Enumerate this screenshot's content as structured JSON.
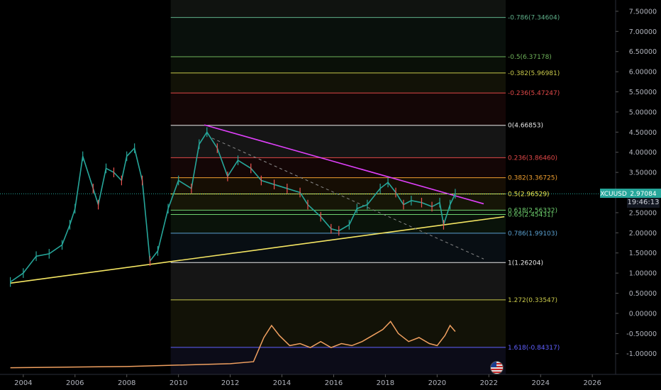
{
  "chart_data": {
    "type": "line",
    "symbol": "XCUUSD",
    "last_price": "2.97084",
    "countdown": "19:46:13",
    "x_range": [
      2003.1,
      2026.9
    ],
    "y_range": [
      -1.515,
      7.78
    ],
    "x_ticks": [
      "2004",
      "2006",
      "2008",
      "2010",
      "2012",
      "2014",
      "2016",
      "2018",
      "2020",
      "2022",
      "2024",
      "2026"
    ],
    "y_ticks": [
      "7.50000",
      "7.00000",
      "6.50000",
      "6.00000",
      "5.50000",
      "5.00000",
      "4.50000",
      "4.00000",
      "3.50000",
      "3.00000",
      "2.50000",
      "2.00000",
      "1.50000",
      "1.00000",
      "0.50000",
      "0.00000",
      "-0.50000",
      "-1.00000"
    ],
    "fib_levels": [
      {
        "ratio": -0.786,
        "price": 7.34604,
        "label": "-0.786(7.34604)",
        "color": "#5fb08a"
      },
      {
        "ratio": -0.5,
        "price": 6.37178,
        "label": "-0.5(6.37178)",
        "color": "#6fb35a"
      },
      {
        "ratio": -0.382,
        "price": 5.96981,
        "label": "-0.382(5.96981)",
        "color": "#c8c84a"
      },
      {
        "ratio": -0.236,
        "price": 5.47247,
        "label": "-0.236(5.47247)",
        "color": "#e04848"
      },
      {
        "ratio": 0,
        "price": 4.66853,
        "label": "0(4.66853)",
        "color": "#e8e8e8"
      },
      {
        "ratio": 0.236,
        "price": 3.8646,
        "label": "0.236(3.86460)",
        "color": "#e04848"
      },
      {
        "ratio": 0.382,
        "price": 3.36725,
        "label": "0.382(3.36725)",
        "color": "#f0a030"
      },
      {
        "ratio": 0.5,
        "price": 2.96529,
        "label": "0.5(2.96529)",
        "color": "#f5f050"
      },
      {
        "ratio": 0.618,
        "price": 2.56332,
        "label": "0.618(2.56332)",
        "color": "#6fd06f"
      },
      {
        "ratio": 0.65,
        "price": 2.45431,
        "label": "0.65(2.45431)",
        "color": "#6fd06f"
      },
      {
        "ratio": 0.786,
        "price": 1.99103,
        "label": "0.786(1.99103)",
        "color": "#5aa0d0"
      },
      {
        "ratio": 1,
        "price": 1.26204,
        "label": "1(1.26204)",
        "color": "#e8e8e8"
      },
      {
        "ratio": 1.272,
        "price": 0.33547,
        "label": "1.272(0.33547)",
        "color": "#c8c84a"
      },
      {
        "ratio": 1.618,
        "price": -0.84317,
        "label": "1.618(-0.84317)",
        "color": "#6060ff"
      }
    ],
    "fib_range_x": [
      2009.7,
      2022.65
    ],
    "price_series": {
      "name": "XCUUSD",
      "color": "#26a69a",
      "x": [
        2003.5,
        2004.0,
        2004.5,
        2005.0,
        2005.5,
        2005.8,
        2006.0,
        2006.3,
        2006.7,
        2006.9,
        2007.2,
        2007.5,
        2007.8,
        2008.0,
        2008.3,
        2008.6,
        2008.9,
        2009.2,
        2009.6,
        2010.0,
        2010.5,
        2010.8,
        2011.1,
        2011.5,
        2011.9,
        2012.3,
        2012.8,
        2013.2,
        2013.7,
        2014.2,
        2014.7,
        2015.0,
        2015.5,
        2015.9,
        2016.2,
        2016.6,
        2016.9,
        2017.3,
        2017.8,
        2018.1,
        2018.4,
        2018.7,
        2019.0,
        2019.4,
        2019.8,
        2020.1,
        2020.25,
        2020.5,
        2020.7
      ],
      "y": [
        0.78,
        1.0,
        1.42,
        1.48,
        1.7,
        2.2,
        2.6,
        3.9,
        3.1,
        2.7,
        3.6,
        3.5,
        3.3,
        3.9,
        4.1,
        3.3,
        1.3,
        1.55,
        2.6,
        3.3,
        3.1,
        4.2,
        4.5,
        4.1,
        3.4,
        3.8,
        3.6,
        3.3,
        3.2,
        3.1,
        3.0,
        2.7,
        2.4,
        2.1,
        2.05,
        2.2,
        2.6,
        2.7,
        3.1,
        3.25,
        3.0,
        2.7,
        2.8,
        2.75,
        2.65,
        2.75,
        2.2,
        2.7,
        2.97
      ]
    },
    "oscillator_series": {
      "name": "",
      "color": "#f0a060",
      "x": [
        2003.5,
        2008.0,
        2012.0,
        2012.9,
        2013.3,
        2013.6,
        2013.9,
        2014.3,
        2014.7,
        2015.1,
        2015.5,
        2015.9,
        2016.3,
        2016.7,
        2017.1,
        2017.5,
        2017.9,
        2018.2,
        2018.5,
        2018.9,
        2019.3,
        2019.7,
        2020.0,
        2020.3,
        2020.5,
        2020.7
      ],
      "y": [
        -1.35,
        -1.32,
        -1.25,
        -1.2,
        -0.6,
        -0.3,
        -0.55,
        -0.8,
        -0.75,
        -0.85,
        -0.7,
        -0.85,
        -0.75,
        -0.8,
        -0.7,
        -0.55,
        -0.4,
        -0.2,
        -0.5,
        -0.7,
        -0.6,
        -0.75,
        -0.8,
        -0.55,
        -0.3,
        -0.45
      ]
    },
    "trendlines": [
      {
        "name": "support",
        "color": "#f5e663",
        "from": [
          2003.5,
          0.75
        ],
        "to": [
          2022.6,
          2.4
        ]
      },
      {
        "name": "resistance",
        "color": "#e040fb",
        "from": [
          2011.0,
          4.68
        ],
        "to": [
          2021.8,
          2.72
        ]
      },
      {
        "name": "dashed-projection",
        "color": "#8a8a8a",
        "from": [
          2011.3,
          4.35
        ],
        "to": [
          2021.8,
          1.35
        ]
      }
    ],
    "current_price_line": 2.97,
    "grid": false
  }
}
